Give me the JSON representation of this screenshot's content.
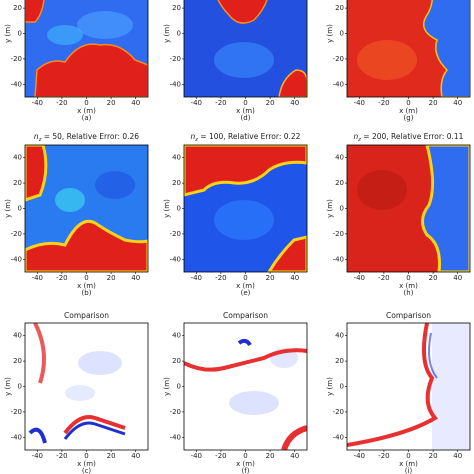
{
  "chart_data": [
    {
      "type": "image",
      "caption": "(a)",
      "xlabel": "x (m)",
      "ylabel": "y (m)",
      "xlim": [
        -50,
        50
      ],
      "ylim": [
        -50,
        50
      ],
      "xticks": [
        -40,
        -20,
        0,
        20,
        40
      ],
      "yticks": [
        -40,
        -20,
        0,
        20
      ]
    },
    {
      "type": "image",
      "caption": "(d)",
      "xlabel": "x (m)",
      "ylabel": "y (m)",
      "xlim": [
        -50,
        50
      ],
      "ylim": [
        -50,
        50
      ],
      "xticks": [
        -40,
        -20,
        0,
        20,
        40
      ],
      "yticks": [
        -40,
        -20,
        0,
        20
      ]
    },
    {
      "type": "image",
      "caption": "(g)",
      "xlabel": "x (m)",
      "ylabel": "y (m)",
      "xlim": [
        -50,
        50
      ],
      "ylim": [
        -50,
        50
      ],
      "xticks": [
        -40,
        -20,
        0,
        20,
        40
      ],
      "yticks": [
        -40,
        -20,
        0,
        20
      ]
    },
    {
      "type": "image",
      "title_var": "n",
      "title_sub": "z",
      "title_text": " = 50, Relative Error: 0.26",
      "caption": "(b)",
      "xlabel": "x (m)",
      "ylabel": "y (m)",
      "xlim": [
        -50,
        50
      ],
      "ylim": [
        -50,
        50
      ],
      "xticks": [
        -40,
        -20,
        0,
        20,
        40
      ],
      "yticks": [
        -40,
        -20,
        0,
        20,
        40
      ]
    },
    {
      "type": "image",
      "title_var": "n",
      "title_sub": "z",
      "title_text": " = 100, Relative Error: 0.22",
      "caption": "(e)",
      "xlabel": "x (m)",
      "ylabel": "y (m)",
      "xlim": [
        -50,
        50
      ],
      "ylim": [
        -50,
        50
      ],
      "xticks": [
        -40,
        -20,
        0,
        20,
        40
      ],
      "yticks": [
        -40,
        -20,
        0,
        20,
        40
      ]
    },
    {
      "type": "image",
      "title_var": "n",
      "title_sub": "z",
      "title_text": " = 200, Relative Error: 0.11",
      "caption": "(h)",
      "xlabel": "x (m)",
      "ylabel": "y (m)",
      "xlim": [
        -50,
        50
      ],
      "ylim": [
        -50,
        50
      ],
      "xticks": [
        -40,
        -20,
        0,
        20,
        40
      ],
      "yticks": [
        -40,
        -20,
        0,
        20,
        40
      ]
    },
    {
      "type": "image",
      "title": "Comparison",
      "caption": "(c)",
      "xlabel": "x (m)",
      "ylabel": "y (m)",
      "xlim": [
        -50,
        50
      ],
      "ylim": [
        -50,
        50
      ],
      "xticks": [
        -40,
        -20,
        0,
        20,
        40
      ],
      "yticks": [
        -40,
        -20,
        0,
        20,
        40
      ]
    },
    {
      "type": "image",
      "title": "Comparison",
      "caption": "(f)",
      "xlabel": "x (m)",
      "ylabel": "y (m)",
      "xlim": [
        -50,
        50
      ],
      "ylim": [
        -50,
        50
      ],
      "xticks": [
        -40,
        -20,
        0,
        20,
        40
      ],
      "yticks": [
        -40,
        -20,
        0,
        20,
        40
      ]
    },
    {
      "type": "image",
      "title": "Comparison",
      "caption": "(i)",
      "xlabel": "x (m)",
      "ylabel": "y (m)",
      "xlim": [
        -50,
        50
      ],
      "ylim": [
        -50,
        50
      ],
      "xticks": [
        -40,
        -20,
        0,
        20,
        40
      ],
      "yticks": [
        -40,
        -20,
        0,
        20,
        40
      ]
    }
  ]
}
